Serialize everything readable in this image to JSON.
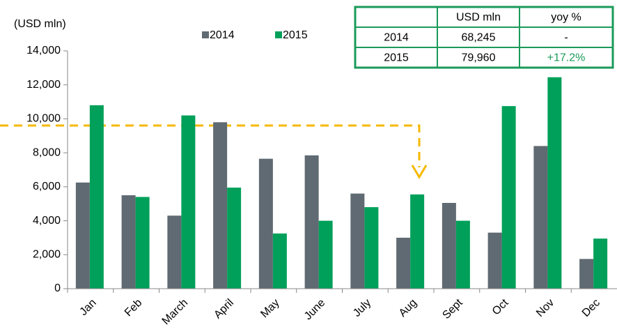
{
  "chart_data": {
    "type": "bar",
    "y_label": "(USD mln)",
    "categories": [
      "Jan",
      "Feb",
      "March",
      "April",
      "May",
      "June",
      "July",
      "Aug",
      "Sept",
      "Oct",
      "Nov",
      "Dec"
    ],
    "series": [
      {
        "name": "2014",
        "color": "#5f6a72",
        "values": [
          6250,
          5500,
          4300,
          9800,
          7650,
          7850,
          5600,
          3000,
          5050,
          3300,
          8400,
          1750
        ]
      },
      {
        "name": "2015",
        "color": "#00a05a",
        "values": [
          10800,
          5400,
          10200,
          5950,
          3250,
          4000,
          4800,
          5550,
          4000,
          10750,
          12450,
          2950
        ]
      }
    ],
    "ylim": [
      0,
      14000
    ],
    "yticks": [
      0,
      {
        "value": 2000,
        "label": "2,000"
      },
      {
        "value": 4000,
        "label": "4,000"
      },
      {
        "value": 6000,
        "label": "6,000"
      },
      {
        "value": 8000,
        "label": "8,000"
      },
      {
        "value": 10000,
        "label": "10,000"
      },
      {
        "value": 12000,
        "label": "12,000"
      },
      {
        "value": 14000,
        "label": "14,000"
      }
    ],
    "grid": false,
    "table": {
      "header": [
        "USD mln",
        "yoy %"
      ],
      "rows": [
        [
          "2014",
          "68,245",
          "-"
        ],
        [
          "2015",
          "79,960",
          "+17.2%"
        ]
      ],
      "highlight_color": "#1a9a5a"
    }
  }
}
